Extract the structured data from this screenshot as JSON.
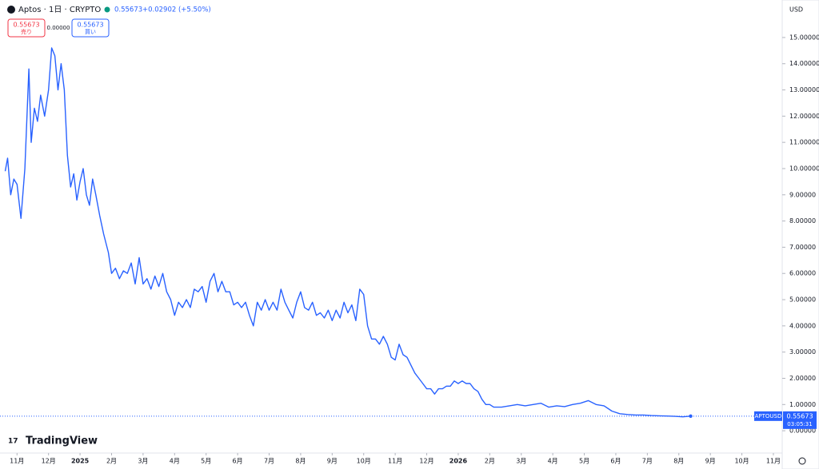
{
  "header": {
    "symbol": "Aptos · 1日 · CRYPTO",
    "price": "0.55673",
    "change": "+0.02902 (+5.50%)",
    "sell_price": "0.55673",
    "sell_label": "売り",
    "spread": "0.00000",
    "buy_price": "0.55673",
    "buy_label": "買い",
    "currency": "USD",
    "brand": "TradingView",
    "ticker": "APTOUSD",
    "tag_price": "0.55673",
    "countdown": "03:05:31"
  },
  "chart_data": {
    "type": "line",
    "x": [
      -2.375,
      -2.3,
      -2.2,
      -2.1,
      -2,
      -1.875,
      -1.75,
      -1.625,
      -1.55,
      -1.45,
      -1.35,
      -1.25,
      -1.125,
      -1,
      -0.9,
      -0.8,
      -0.7,
      -0.6,
      -0.5,
      -0.4,
      -0.3,
      -0.2,
      -0.1,
      0,
      0.1,
      0.2,
      0.3,
      0.4,
      0.5,
      0.625,
      0.75,
      0.9,
      1,
      1.125,
      1.25,
      1.375,
      1.5,
      1.625,
      1.75,
      1.875,
      2,
      2.125,
      2.25,
      2.375,
      2.5,
      2.625,
      2.75,
      2.875,
      3,
      3.125,
      3.25,
      3.375,
      3.5,
      3.625,
      3.75,
      3.875,
      4,
      4.125,
      4.25,
      4.375,
      4.5,
      4.625,
      4.75,
      4.875,
      5,
      5.125,
      5.25,
      5.375,
      5.5,
      5.625,
      5.75,
      5.875,
      6,
      6.125,
      6.25,
      6.375,
      6.5,
      6.625,
      6.75,
      6.875,
      7,
      7.125,
      7.25,
      7.375,
      7.5,
      7.625,
      7.75,
      7.875,
      8,
      8.125,
      8.25,
      8.375,
      8.5,
      8.625,
      8.75,
      8.875,
      9,
      9.125,
      9.25,
      9.375,
      9.5,
      9.625,
      9.75,
      9.875,
      10,
      10.125,
      10.25,
      10.375,
      10.5,
      10.625,
      10.75,
      10.875,
      11,
      11.125,
      11.25,
      11.375,
      11.5,
      11.625,
      11.75,
      11.875,
      12,
      12.125,
      12.25,
      12.375,
      12.5,
      12.625,
      12.75,
      12.875,
      13,
      13.125,
      13.375,
      13.625,
      13.875,
      14.125,
      14.375,
      14.625,
      14.875,
      15.125,
      15.375,
      15.625,
      15.875,
      16.125,
      16.375,
      16.625,
      16.875,
      17.125,
      17.375,
      17.625,
      17.875,
      18.125,
      18.375,
      18.625,
      18.875,
      19.125,
      19.375
    ],
    "series": [
      {
        "name": "APTOUSD",
        "color": "#2962ff",
        "values": [
          9.9,
          10.4,
          9.0,
          9.6,
          9.4,
          8.1,
          10.0,
          13.8,
          11.0,
          12.3,
          11.8,
          12.8,
          12.0,
          13.0,
          14.6,
          14.3,
          13.0,
          14.0,
          13.0,
          10.5,
          9.3,
          9.8,
          8.8,
          9.5,
          10.0,
          9.0,
          8.6,
          9.6,
          9.0,
          8.2,
          7.5,
          6.8,
          6.0,
          6.2,
          5.8,
          6.1,
          6.0,
          6.4,
          5.6,
          6.6,
          5.6,
          5.8,
          5.4,
          5.9,
          5.5,
          6.0,
          5.3,
          5.0,
          4.4,
          4.9,
          4.7,
          5.0,
          4.7,
          5.4,
          5.3,
          5.5,
          4.9,
          5.7,
          6.0,
          5.3,
          5.7,
          5.3,
          5.3,
          4.8,
          4.9,
          4.7,
          4.9,
          4.4,
          4.0,
          4.9,
          4.6,
          5.0,
          4.6,
          4.9,
          4.6,
          5.4,
          4.9,
          4.6,
          4.3,
          4.9,
          5.3,
          4.7,
          4.6,
          4.9,
          4.4,
          4.5,
          4.3,
          4.6,
          4.2,
          4.6,
          4.3,
          4.9,
          4.5,
          4.8,
          4.2,
          5.4,
          5.2,
          4.0,
          3.5,
          3.5,
          3.3,
          3.6,
          3.3,
          2.8,
          2.7,
          3.3,
          2.9,
          2.8,
          2.5,
          2.2,
          2.0,
          1.8,
          1.6,
          1.6,
          1.4,
          1.6,
          1.6,
          1.7,
          1.7,
          1.9,
          1.8,
          1.9,
          1.8,
          1.8,
          1.6,
          1.5,
          1.2,
          1.0,
          1.0,
          0.9,
          0.9,
          0.95,
          1.0,
          0.95,
          1.0,
          1.05,
          0.9,
          0.95,
          0.92,
          1.0,
          1.05,
          1.15,
          1.0,
          0.95,
          0.75,
          0.65,
          0.62,
          0.6,
          0.6,
          0.58,
          0.57,
          0.56,
          0.55,
          0.53,
          0.55673
        ]
      }
    ],
    "xlim": [
      -2.54,
      22.28
    ],
    "xticks": [
      {
        "value": -2,
        "label": "11月"
      },
      {
        "value": -1,
        "label": "12月"
      },
      {
        "value": 0,
        "label": "2025"
      },
      {
        "value": 1,
        "label": "2月"
      },
      {
        "value": 2,
        "label": "3月"
      },
      {
        "value": 3,
        "label": "4月"
      },
      {
        "value": 4,
        "label": "5月"
      },
      {
        "value": 5,
        "label": "6月"
      },
      {
        "value": 6,
        "label": "7月"
      },
      {
        "value": 7,
        "label": "8月"
      },
      {
        "value": 8,
        "label": "9月"
      },
      {
        "value": 9,
        "label": "10月"
      },
      {
        "value": 10,
        "label": "11月"
      },
      {
        "value": 11,
        "label": "12月"
      },
      {
        "value": 12,
        "label": "2026"
      },
      {
        "value": 13,
        "label": "2月"
      },
      {
        "value": 14,
        "label": "3月"
      },
      {
        "value": 15,
        "label": "4月"
      },
      {
        "value": 16,
        "label": "5月"
      },
      {
        "value": 17,
        "label": "6月"
      },
      {
        "value": 18,
        "label": "7月"
      },
      {
        "value": 19,
        "label": "8月"
      },
      {
        "value": 20,
        "label": "9月"
      },
      {
        "value": 21,
        "label": "10月"
      },
      {
        "value": 22,
        "label": "11月"
      }
    ],
    "ylim": [
      -0.85,
      16.43
    ],
    "yticks": [
      {
        "value": 0,
        "label": "0.00000"
      },
      {
        "value": 1,
        "label": "1.00000"
      },
      {
        "value": 2,
        "label": "2.00000"
      },
      {
        "value": 3,
        "label": "3.00000"
      },
      {
        "value": 4,
        "label": "4.00000"
      },
      {
        "value": 5,
        "label": "5.00000"
      },
      {
        "value": 6,
        "label": "6.00000"
      },
      {
        "value": 7,
        "label": "7.00000"
      },
      {
        "value": 8,
        "label": "8.00000"
      },
      {
        "value": 9,
        "label": "9.00000"
      },
      {
        "value": 10,
        "label": "10.00000"
      },
      {
        "value": 11,
        "label": "11.00000"
      },
      {
        "value": 12,
        "label": "12.00000"
      },
      {
        "value": 13,
        "label": "13.00000"
      },
      {
        "value": 14,
        "label": "14.00000"
      },
      {
        "value": 15,
        "label": "15.00000"
      }
    ],
    "grid": false
  }
}
